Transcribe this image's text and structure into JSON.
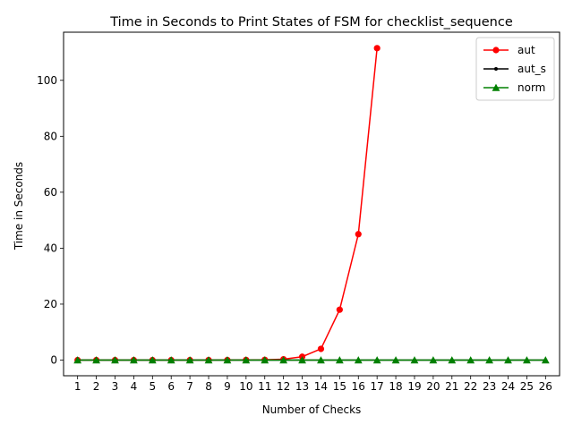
{
  "chart_data": {
    "type": "line",
    "title": "Time in Seconds to Print States of FSM for checklist_sequence",
    "xlabel": "Number of Checks",
    "ylabel": "Time in Seconds",
    "x": [
      1,
      2,
      3,
      4,
      5,
      6,
      7,
      8,
      9,
      10,
      11,
      12,
      13,
      14,
      15,
      16,
      17,
      18,
      19,
      20,
      21,
      22,
      23,
      24,
      25,
      26
    ],
    "xlim": [
      0.25,
      26.75
    ],
    "ylim": [
      -5.6,
      117.2
    ],
    "yticks": [
      0,
      20,
      40,
      60,
      80,
      100
    ],
    "grid": false,
    "legend_position": "upper right",
    "series": [
      {
        "name": "aut",
        "color": "#ff0000",
        "marker": "circle",
        "x": [
          1,
          2,
          3,
          4,
          5,
          6,
          7,
          8,
          9,
          10,
          11,
          12,
          13,
          14,
          15,
          16,
          17
        ],
        "values": [
          0.0,
          0.0,
          0.0,
          0.0,
          0.0,
          0.0,
          0.0,
          0.01,
          0.02,
          0.05,
          0.1,
          0.3,
          1.2,
          4.0,
          18.0,
          45.0,
          111.5
        ]
      },
      {
        "name": "aut_s",
        "color": "#000000",
        "marker": "point",
        "x": [
          1,
          2,
          3,
          4,
          5,
          6,
          7,
          8,
          9,
          10,
          11,
          12,
          13,
          14,
          15,
          16,
          17,
          18,
          19,
          20,
          21,
          22,
          23,
          24,
          25,
          26
        ],
        "values": [
          0,
          0,
          0,
          0,
          0,
          0,
          0,
          0,
          0,
          0,
          0,
          0,
          0,
          0,
          0,
          0,
          0,
          0,
          0,
          0,
          0,
          0,
          0,
          0,
          0,
          0
        ]
      },
      {
        "name": "norm",
        "color": "#008000",
        "marker": "triangle",
        "x": [
          1,
          2,
          3,
          4,
          5,
          6,
          7,
          8,
          9,
          10,
          11,
          12,
          13,
          14,
          15,
          16,
          17,
          18,
          19,
          20,
          21,
          22,
          23,
          24,
          25,
          26
        ],
        "values": [
          0,
          0,
          0,
          0,
          0,
          0,
          0,
          0,
          0,
          0,
          0,
          0,
          0,
          0,
          0,
          0,
          0,
          0,
          0,
          0,
          0,
          0,
          0,
          0,
          0,
          0
        ]
      }
    ]
  }
}
